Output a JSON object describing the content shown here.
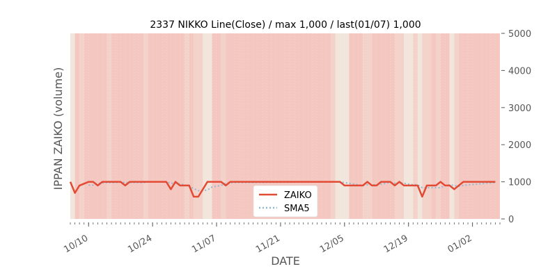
{
  "chart_data": {
    "type": "line",
    "title": "2337 NIKKO Line(Close) / max 1,000 / last(01/07) 1,000",
    "xlabel": "DATE",
    "ylabel": "IPPAN ZAIKO (volume)",
    "ylim": [
      0,
      5000
    ],
    "y_ticks": [
      0,
      1000,
      2000,
      3000,
      4000,
      5000
    ],
    "y_tick_labels": [
      "0",
      "1000",
      "2000",
      "3000",
      "4000",
      "5000"
    ],
    "y_axis_side": "right",
    "x_range": [
      "2023-10-06",
      "2024-01-08"
    ],
    "x_ticks": [
      {
        "date": "2023-10-10",
        "label": "10/10"
      },
      {
        "date": "2023-10-24",
        "label": "10/24"
      },
      {
        "date": "2023-11-07",
        "label": "11/07"
      },
      {
        "date": "2023-11-21",
        "label": "11/21"
      },
      {
        "date": "2023-12-05",
        "label": "12/05"
      },
      {
        "date": "2023-12-19",
        "label": "12/19"
      },
      {
        "date": "2024-01-02",
        "label": "01/02"
      }
    ],
    "grid": false,
    "legend": "lower-center",
    "series": [
      {
        "name": "ZAIKO",
        "color": "#e24a33",
        "style": "solid",
        "x": [
          "2023-10-06",
          "2023-10-07",
          "2023-10-08",
          "2023-10-09",
          "2023-10-10",
          "2023-10-11",
          "2023-10-12",
          "2023-10-13",
          "2023-10-14",
          "2023-10-15",
          "2023-10-16",
          "2023-10-17",
          "2023-10-18",
          "2023-10-19",
          "2023-10-20",
          "2023-10-21",
          "2023-10-22",
          "2023-10-23",
          "2023-10-24",
          "2023-10-25",
          "2023-10-26",
          "2023-10-27",
          "2023-10-28",
          "2023-10-29",
          "2023-10-30",
          "2023-10-31",
          "2023-11-01",
          "2023-11-02",
          "2023-11-03",
          "2023-11-04",
          "2023-11-05",
          "2023-11-06",
          "2023-11-07",
          "2023-11-08",
          "2023-11-09",
          "2023-11-10",
          "2023-11-11",
          "2023-12-03",
          "2023-12-04",
          "2023-12-05",
          "2023-12-06",
          "2023-12-07",
          "2023-12-08",
          "2023-12-09",
          "2023-12-10",
          "2023-12-11",
          "2023-12-12",
          "2023-12-13",
          "2023-12-14",
          "2023-12-15",
          "2023-12-16",
          "2023-12-17",
          "2023-12-18",
          "2023-12-19",
          "2023-12-20",
          "2023-12-21",
          "2023-12-22",
          "2023-12-23",
          "2023-12-24",
          "2023-12-25",
          "2023-12-26",
          "2023-12-27",
          "2023-12-28",
          "2023-12-29",
          "2023-12-30",
          "2023-12-31",
          "2024-01-01",
          "2024-01-07"
        ],
        "y": [
          1000,
          700,
          900,
          950,
          1000,
          1000,
          900,
          1000,
          1000,
          1000,
          1000,
          1000,
          900,
          1000,
          1000,
          1000,
          1000,
          1000,
          1000,
          1000,
          1000,
          1000,
          800,
          1000,
          900,
          900,
          900,
          600,
          600,
          800,
          1000,
          1000,
          1000,
          1000,
          900,
          1000,
          1000,
          1000,
          1000,
          900,
          900,
          900,
          900,
          900,
          1000,
          900,
          900,
          1000,
          1000,
          1000,
          900,
          1000,
          900,
          900,
          900,
          900,
          600,
          900,
          900,
          900,
          1000,
          900,
          900,
          800,
          900,
          1000,
          1000,
          1000
        ]
      },
      {
        "name": "SMA5",
        "color": "#8eb9d4",
        "style": "dotted",
        "x": [
          "2023-10-10",
          "2023-10-11",
          "2023-10-12",
          "2023-10-13",
          "2023-10-14",
          "2023-10-15",
          "2023-10-16",
          "2023-10-17",
          "2023-10-18",
          "2023-10-19",
          "2023-10-20",
          "2023-10-21",
          "2023-10-22",
          "2023-10-23",
          "2023-10-24",
          "2023-10-25",
          "2023-10-26",
          "2023-10-27",
          "2023-10-28",
          "2023-10-29",
          "2023-10-30",
          "2023-10-31",
          "2023-11-01",
          "2023-11-02",
          "2023-11-03",
          "2023-11-04",
          "2023-11-05",
          "2023-11-06",
          "2023-11-07",
          "2023-11-08",
          "2023-11-09",
          "2023-11-10",
          "2023-11-11",
          "2023-12-03",
          "2023-12-04",
          "2023-12-05",
          "2023-12-06",
          "2023-12-07",
          "2023-12-08",
          "2023-12-09",
          "2023-12-10",
          "2023-12-11",
          "2023-12-12",
          "2023-12-13",
          "2023-12-14",
          "2023-12-15",
          "2023-12-16",
          "2023-12-17",
          "2023-12-18",
          "2023-12-19",
          "2023-12-20",
          "2023-12-21",
          "2023-12-22",
          "2023-12-23",
          "2023-12-24",
          "2023-12-25",
          "2023-12-26",
          "2023-12-27",
          "2023-12-28",
          "2023-12-29",
          "2023-12-30",
          "2023-12-31",
          "2024-01-01",
          "2024-01-07"
        ],
        "y": [
          910,
          910,
          950,
          970,
          980,
          980,
          980,
          1000,
          980,
          980,
          980,
          980,
          980,
          1000,
          1000,
          1000,
          1000,
          1000,
          960,
          960,
          940,
          920,
          880,
          820,
          760,
          760,
          780,
          860,
          880,
          900,
          960,
          980,
          980,
          1000,
          1000,
          980,
          960,
          940,
          920,
          900,
          920,
          920,
          920,
          940,
          960,
          980,
          960,
          980,
          960,
          940,
          920,
          920,
          840,
          840,
          840,
          840,
          840,
          900,
          920,
          900,
          880,
          900,
          920,
          980
        ]
      }
    ],
    "background_bands": [
      {
        "from": "2023-10-06",
        "to": "2023-10-07",
        "level": "light"
      },
      {
        "from": "2023-10-07",
        "to": "2023-10-08",
        "level": "strong"
      },
      {
        "from": "2023-10-08",
        "to": "2023-10-09",
        "level": "medium"
      },
      {
        "from": "2023-10-09",
        "to": "2023-10-14",
        "level": "strong"
      },
      {
        "from": "2023-10-14",
        "to": "2023-10-15",
        "level": "medium"
      },
      {
        "from": "2023-10-15",
        "to": "2023-10-22",
        "level": "strong"
      },
      {
        "from": "2023-10-22",
        "to": "2023-10-23",
        "level": "medium"
      },
      {
        "from": "2023-10-23",
        "to": "2023-10-31",
        "level": "strong"
      },
      {
        "from": "2023-10-31",
        "to": "2023-11-01",
        "level": "medium"
      },
      {
        "from": "2023-11-01",
        "to": "2023-11-02",
        "level": "strong"
      },
      {
        "from": "2023-11-02",
        "to": "2023-11-04",
        "level": "medium"
      },
      {
        "from": "2023-11-04",
        "to": "2023-11-06",
        "level": "light"
      },
      {
        "from": "2023-11-06",
        "to": "2023-11-08",
        "level": "strong"
      },
      {
        "from": "2023-11-08",
        "to": "2023-11-09",
        "level": "medium"
      },
      {
        "from": "2023-11-09",
        "to": "2023-12-02",
        "level": "strong"
      },
      {
        "from": "2023-12-02",
        "to": "2023-12-03",
        "level": "medium"
      },
      {
        "from": "2023-12-03",
        "to": "2023-12-06",
        "level": "light"
      },
      {
        "from": "2023-12-06",
        "to": "2023-12-09",
        "level": "strong"
      },
      {
        "from": "2023-12-09",
        "to": "2023-12-11",
        "level": "medium"
      },
      {
        "from": "2023-12-11",
        "to": "2023-12-16",
        "level": "strong"
      },
      {
        "from": "2023-12-16",
        "to": "2023-12-18",
        "level": "medium"
      },
      {
        "from": "2023-12-18",
        "to": "2023-12-20",
        "level": "light"
      },
      {
        "from": "2023-12-20",
        "to": "2023-12-21",
        "level": "medium"
      },
      {
        "from": "2023-12-21",
        "to": "2023-12-22",
        "level": "light"
      },
      {
        "from": "2023-12-22",
        "to": "2023-12-24",
        "level": "medium"
      },
      {
        "from": "2023-12-24",
        "to": "2023-12-25",
        "level": "strong"
      },
      {
        "from": "2023-12-25",
        "to": "2023-12-26",
        "level": "medium"
      },
      {
        "from": "2023-12-26",
        "to": "2023-12-28",
        "level": "strong"
      },
      {
        "from": "2023-12-28",
        "to": "2023-12-29",
        "level": "light"
      },
      {
        "from": "2023-12-29",
        "to": "2023-12-30",
        "level": "medium"
      },
      {
        "from": "2023-12-30",
        "to": "2024-01-08",
        "level": "strong"
      }
    ],
    "band_colors": {
      "light": "#f2e5dc",
      "medium": "#f3d2ca",
      "strong": "#f4c8c0",
      "base": "#e5e5e5"
    }
  }
}
